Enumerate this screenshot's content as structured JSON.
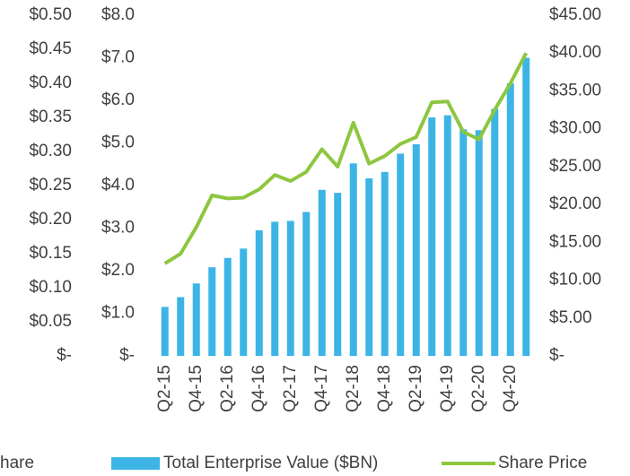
{
  "chart_data": {
    "type": "bar-line",
    "categories": [
      "Q2-15",
      null,
      "Q4-15",
      null,
      "Q2-16",
      null,
      "Q4-16",
      null,
      "Q2-17",
      null,
      "Q4-17",
      null,
      "Q2-18",
      null,
      "Q4-18",
      null,
      "Q2-19",
      null,
      "Q4-19",
      null,
      "Q2-20",
      null,
      "Q4-20",
      null
    ],
    "series": [
      {
        "name": "Total Enterprise Value ($BN)",
        "color": "#3cb4e5",
        "type": "bar",
        "axis": "y",
        "values": [
          1.15,
          1.38,
          1.7,
          2.08,
          2.3,
          2.52,
          2.95,
          3.15,
          3.17,
          3.38,
          3.9,
          3.83,
          4.52,
          4.17,
          4.32,
          4.75,
          4.97,
          5.6,
          5.65,
          5.32,
          5.3,
          5.8,
          6.4,
          7.0
        ]
      },
      {
        "name": "Share Price",
        "color": "#8dc63f",
        "type": "line",
        "axis": "y2",
        "values": [
          12.2,
          13.5,
          17,
          21.2,
          20.8,
          20.9,
          22,
          23.9,
          23.1,
          24.3,
          27.3,
          25,
          30.8,
          25.4,
          26.4,
          28,
          28.9,
          33.5,
          33.6,
          29.6,
          28.6,
          32.5,
          36,
          40
        ]
      }
    ],
    "clipped_legend_label": "hare",
    "y3lim": [
      0,
      0.5
    ],
    "y3ticks": [
      {
        "value": 0.5,
        "label": "$0.50"
      },
      {
        "value": 0.45,
        "label": "$0.45"
      },
      {
        "value": 0.4,
        "label": "$0.40"
      },
      {
        "value": 0.35,
        "label": "$0.35"
      },
      {
        "value": 0.3,
        "label": "$0.30"
      },
      {
        "value": 0.25,
        "label": "$0.25"
      },
      {
        "value": 0.2,
        "label": "$0.20"
      },
      {
        "value": 0.15,
        "label": "$0.15"
      },
      {
        "value": 0.1,
        "label": "$0.10"
      },
      {
        "value": 0.05,
        "label": "$0.05"
      },
      {
        "value": 0,
        "label": "$-"
      }
    ],
    "ylim": [
      0,
      8
    ],
    "yticks": [
      {
        "value": 8,
        "label": "$8.0"
      },
      {
        "value": 7,
        "label": "$7.0"
      },
      {
        "value": 6,
        "label": "$6.0"
      },
      {
        "value": 5,
        "label": "$5.0"
      },
      {
        "value": 4,
        "label": "$4.0"
      },
      {
        "value": 3,
        "label": "$3.0"
      },
      {
        "value": 2,
        "label": "$2.0"
      },
      {
        "value": 1,
        "label": "$1.0"
      },
      {
        "value": 0,
        "label": "$-"
      }
    ],
    "y2lim": [
      0,
      45
    ],
    "y2ticks": [
      {
        "value": 45,
        "label": "$45.00"
      },
      {
        "value": 40,
        "label": "$40.00"
      },
      {
        "value": 35,
        "label": "$35.00"
      },
      {
        "value": 30,
        "label": "$30.00"
      },
      {
        "value": 25,
        "label": "$25.00"
      },
      {
        "value": 20,
        "label": "$20.00"
      },
      {
        "value": 15,
        "label": "$15.00"
      },
      {
        "value": 10,
        "label": "$10.00"
      },
      {
        "value": 5,
        "label": "$5.00"
      },
      {
        "value": 0,
        "label": "$-"
      }
    ],
    "grid": false
  }
}
